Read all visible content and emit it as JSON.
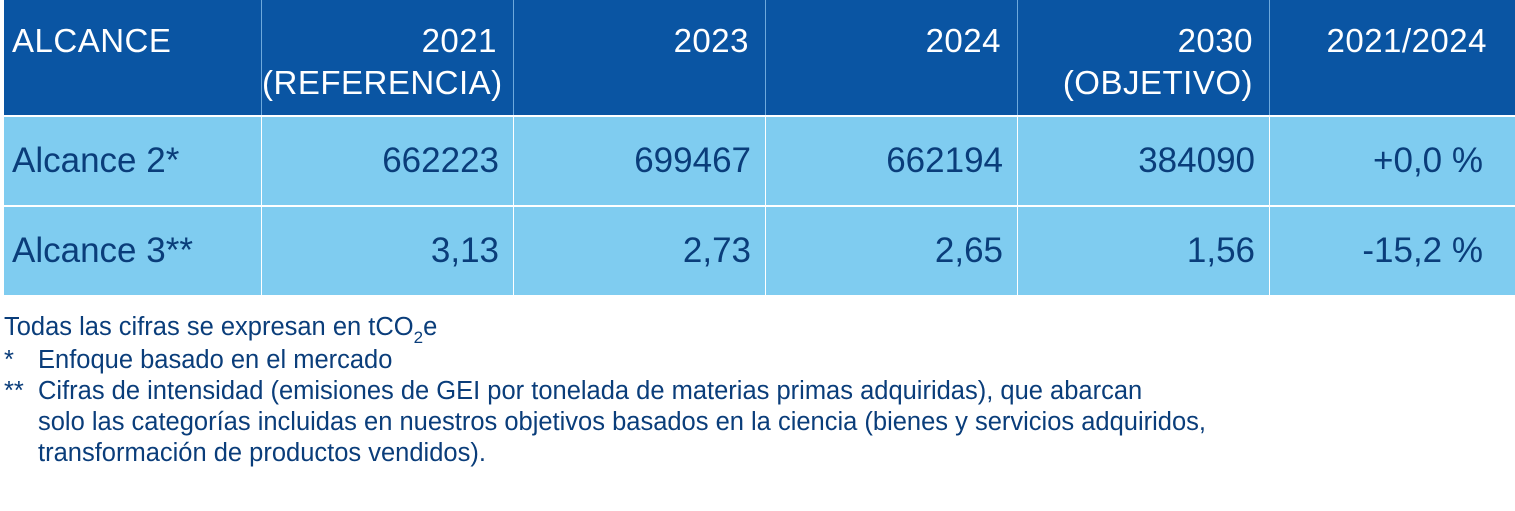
{
  "table": {
    "header": {
      "alcance": "ALCANCE",
      "y2021_line1": "2021",
      "y2021_line2": "(REFERENCIA)",
      "y2023": "2023",
      "y2024": "2024",
      "y2030_line1": "2030",
      "y2030_line2": "(OBJETIVO)",
      "change": "2021/2024"
    },
    "rows": [
      {
        "label": "Alcance  2*",
        "v2021": "662223",
        "v2023": "699467",
        "v2024": "662194",
        "v2030": "384090",
        "change": "+0,0 %"
      },
      {
        "label": "Alcance  3**",
        "v2021": "3,13",
        "v2023": "2,73",
        "v2024": "2,65",
        "v2030": "1,56",
        "change": "-15,2 %"
      }
    ]
  },
  "notes": {
    "units_prefix": "Todas las cifras se expresan en tCO",
    "units_sub": "2",
    "units_suffix": "e",
    "note1_mark": "*",
    "note1_text": "Enfoque basado en el mercado",
    "note2_mark": "**",
    "note2_line1": "Cifras de intensidad (emisiones de GEI por tonelada de materias primas adquiridas), que abarcan",
    "note2_line2": "solo las categorías incluidas en nuestros objetivos basados en la ciencia (bienes y servicios adquiridos,",
    "note2_line3": "transformación de productos vendidos)."
  }
}
